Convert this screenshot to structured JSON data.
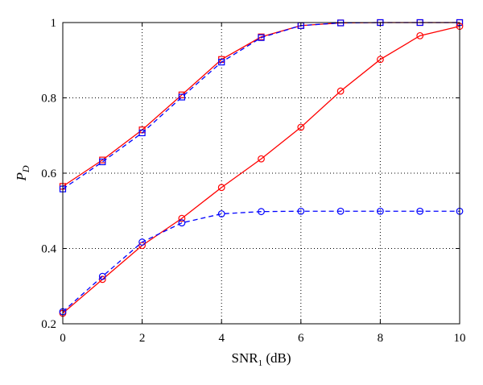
{
  "chart_data": {
    "type": "line",
    "title": "",
    "xlabel": {
      "main": "SNR",
      "sub": "1",
      "suffix": " (dB)"
    },
    "ylabel": {
      "main": "P",
      "sub": "D"
    },
    "xlim": [
      0,
      10
    ],
    "ylim": [
      0.2,
      1.0
    ],
    "xticks": [
      0,
      2,
      4,
      6,
      8,
      10
    ],
    "yticks": [
      0.2,
      0.4,
      0.6,
      0.8,
      1.0
    ],
    "xtick_labels": [
      "0",
      "2",
      "4",
      "6",
      "8",
      "10"
    ],
    "ytick_labels": [
      "0.2",
      "0.4",
      "0.6",
      "0.8",
      "1"
    ],
    "grid": "dotted",
    "legend": "none",
    "x": [
      0,
      1,
      2,
      3,
      4,
      5,
      6,
      7,
      8,
      9,
      10
    ],
    "series": [
      {
        "color": "#ff0000",
        "style": "solid",
        "marker": "square",
        "values": [
          0.565,
          0.635,
          0.715,
          0.808,
          0.902,
          0.962,
          0.992,
          0.999,
          1.0,
          1.0,
          1.0
        ]
      },
      {
        "color": "#0000ff",
        "style": "dashed",
        "marker": "square",
        "values": [
          0.558,
          0.63,
          0.707,
          0.802,
          0.895,
          0.96,
          0.992,
          0.999,
          1.0,
          1.0,
          1.0
        ]
      },
      {
        "color": "#ff0000",
        "style": "solid",
        "marker": "circle",
        "values": [
          0.228,
          0.318,
          0.408,
          0.48,
          0.562,
          0.638,
          0.722,
          0.818,
          0.902,
          0.965,
          0.99
        ]
      },
      {
        "color": "#0000ff",
        "style": "dashed",
        "marker": "circle",
        "values": [
          0.232,
          0.326,
          0.417,
          0.468,
          0.492,
          0.498,
          0.499,
          0.499,
          0.499,
          0.499,
          0.499
        ]
      }
    ]
  }
}
